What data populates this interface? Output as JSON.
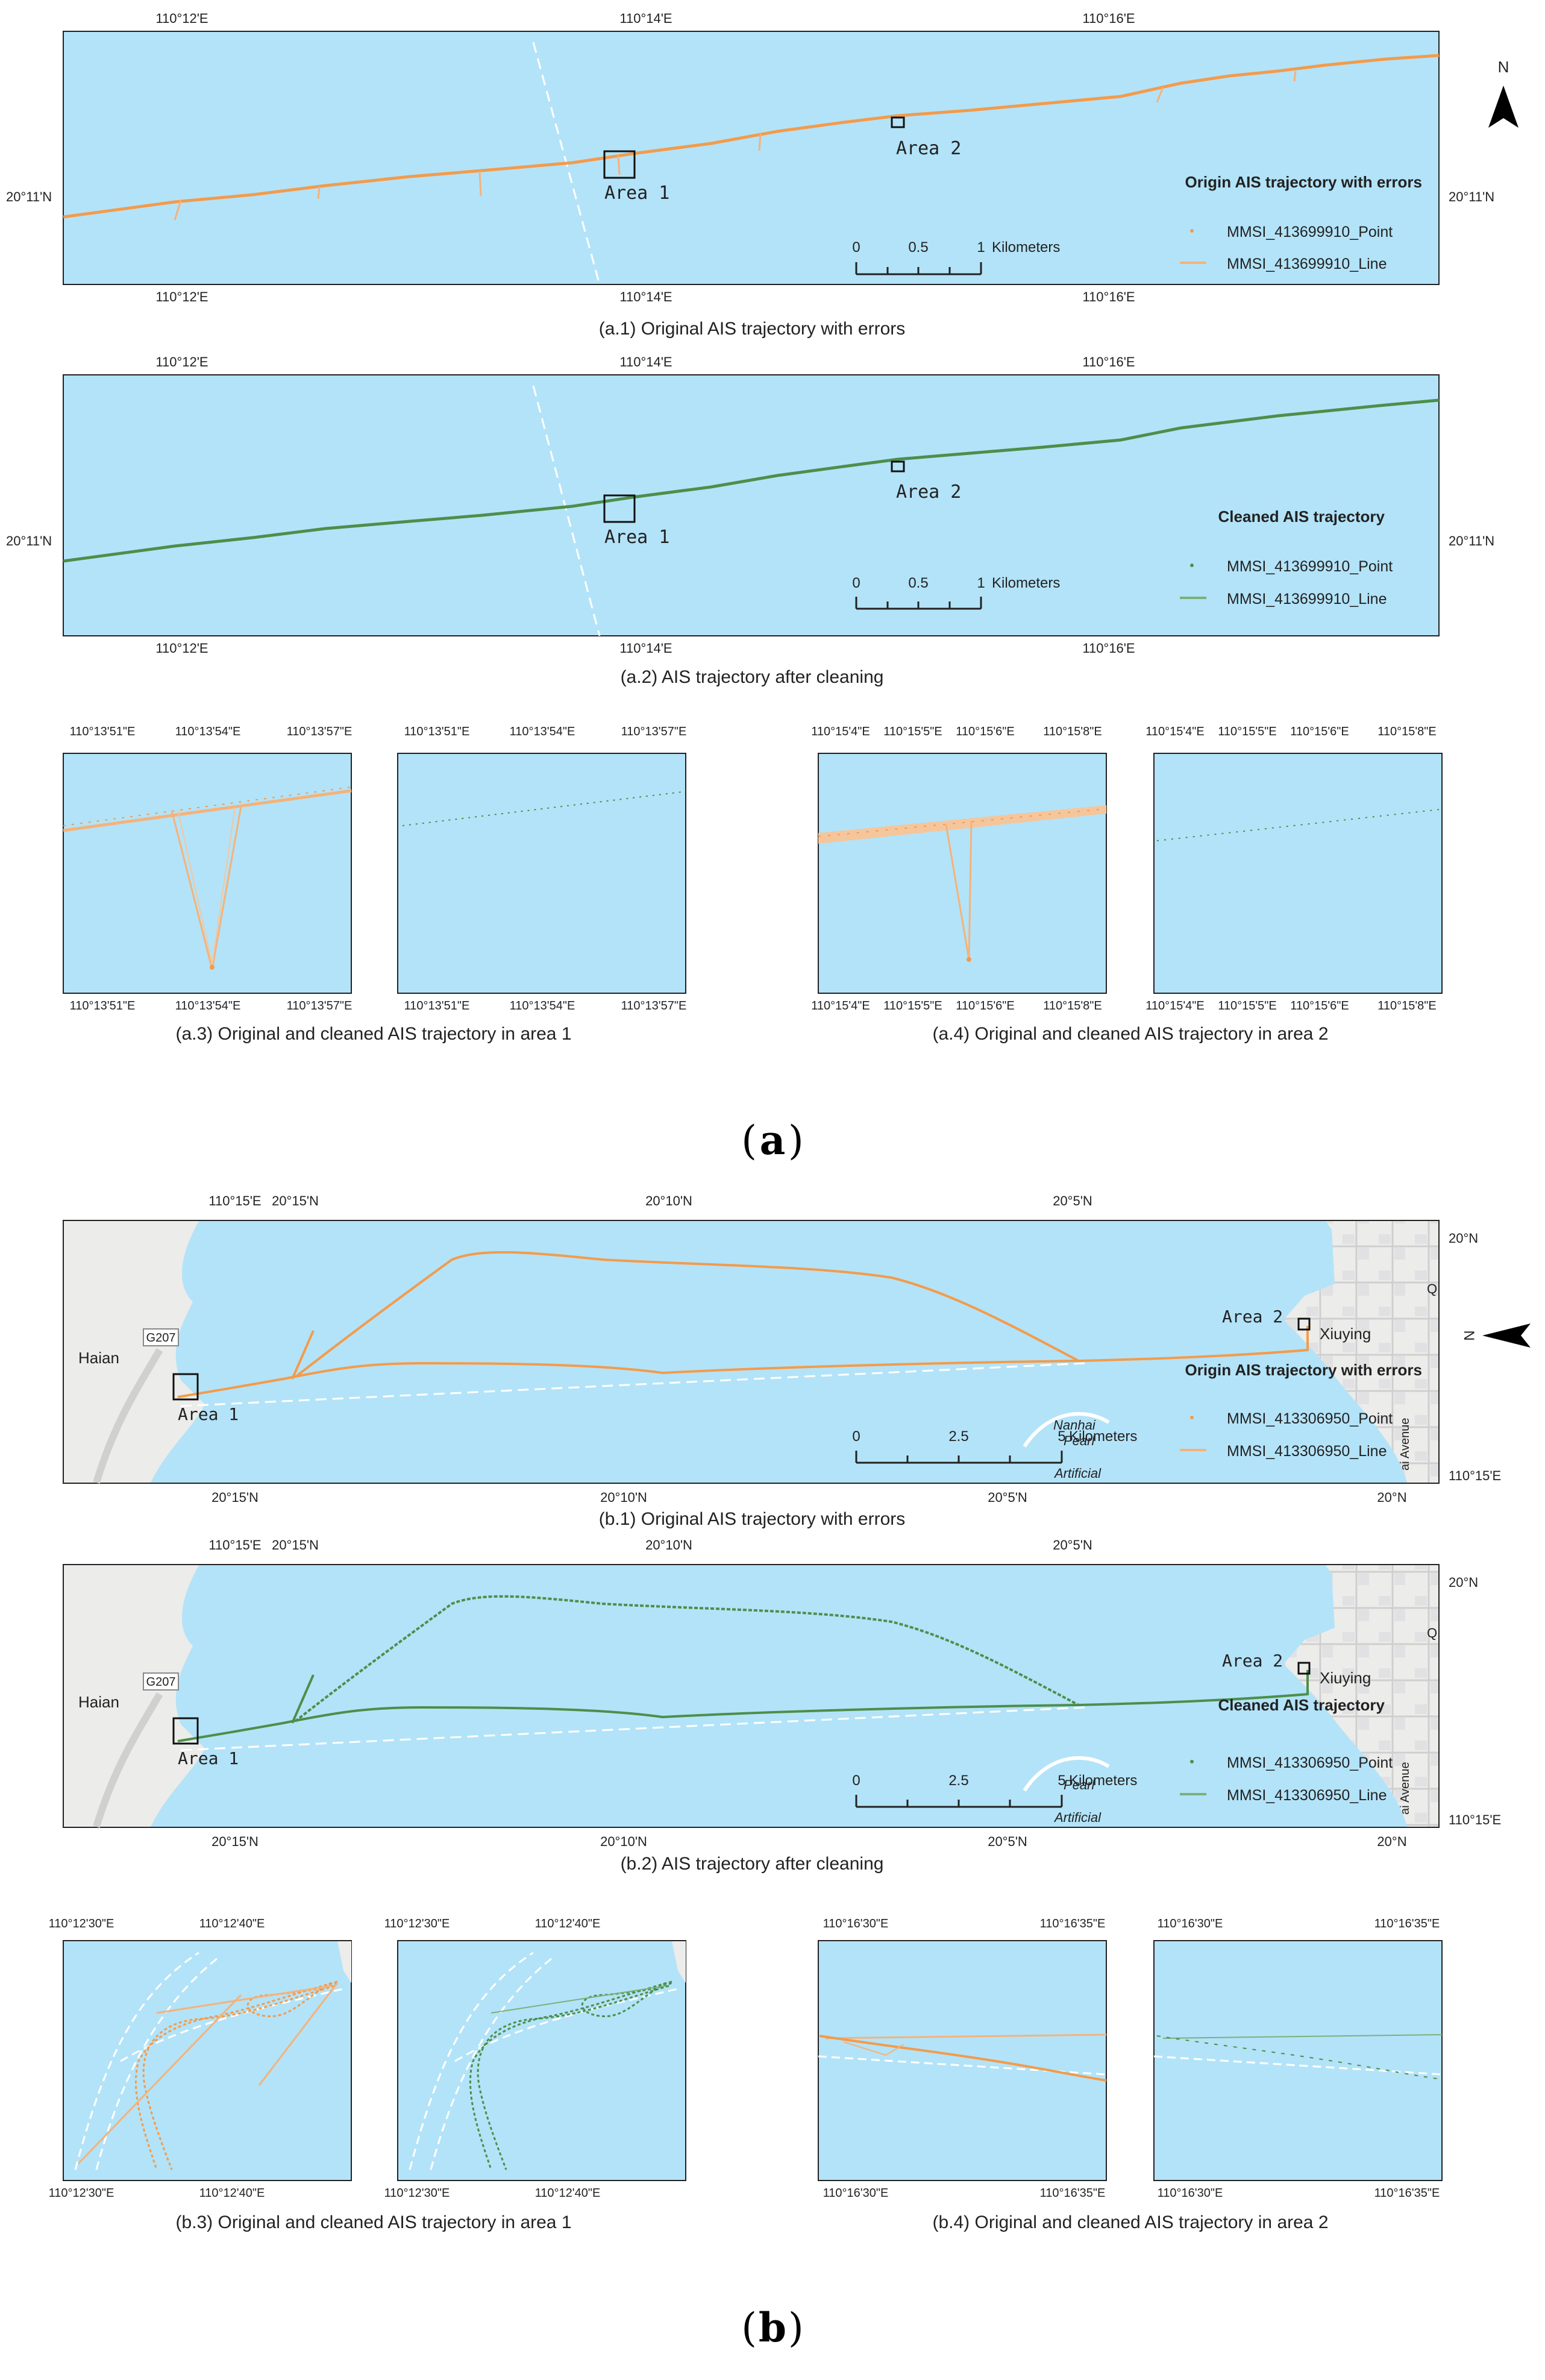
{
  "colors": {
    "water": "#b3e3f8",
    "land": "#ececea",
    "road": "#d8d8d8",
    "origin_trajectory": "#f39b4b",
    "cleaned_trajectory": "#4c8f4a",
    "frame": "#222222"
  },
  "icons": [
    "north-arrow-icon",
    "scale-bar-icon"
  ],
  "a": {
    "label_open": "(",
    "label_letter": "a",
    "label_close": ")",
    "a1": {
      "caption": "(a.1) Original AIS trajectory with errors",
      "lon_ticks": [
        "110°12'E",
        "110°14'E",
        "110°16'E"
      ],
      "lat_ticks": [
        "20°11'N",
        "20°11'N"
      ],
      "area1": "Area 1",
      "area2": "Area 2",
      "legend_title": "Origin AIS trajectory with errors",
      "legend_point": "MMSI_413699910_Point",
      "legend_line": "MMSI_413699910_Line",
      "scale": [
        "0",
        "0.5",
        "1",
        "Kilometers"
      ],
      "north": "N"
    },
    "a2": {
      "caption": "(a.2) AIS trajectory after cleaning",
      "lon_ticks": [
        "110°12'E",
        "110°14'E",
        "110°16'E"
      ],
      "lat_ticks": [
        "20°11'N",
        "20°11'N"
      ],
      "area1": "Area 1",
      "area2": "Area 2",
      "legend_title": "Cleaned AIS trajectory",
      "legend_point": "MMSI_413699910_Point",
      "legend_line": "MMSI_413699910_Line",
      "scale": [
        "0",
        "0.5",
        "1",
        "Kilometers"
      ]
    },
    "a3": {
      "caption": "(a.3) Original and cleaned AIS trajectory in area 1",
      "ticks": [
        "110°13'51\"E",
        "110°13'54\"E",
        "110°13'57\"E"
      ]
    },
    "a4": {
      "caption": "(a.4) Original and cleaned AIS trajectory in area 2",
      "ticks": [
        "110°15'4\"E",
        "110°15'5\"E",
        "110°15'6\"E",
        "110°15'8\"E"
      ]
    }
  },
  "b": {
    "label_open": "(",
    "label_letter": "b",
    "label_close": ")",
    "b1": {
      "caption": "(b.1) Original AIS trajectory with errors",
      "top_ticks": [
        "110°15'E",
        "20°15'N",
        "20°10'N",
        "20°5'N"
      ],
      "bottom_ticks": [
        "20°15'N",
        "20°10'N",
        "20°5'N",
        "20°N"
      ],
      "right_ticks": [
        "20°N",
        "110°15'E"
      ],
      "place_haian": "Haian",
      "road_g207": "G207",
      "place_xiuying": "Xiuying",
      "place_q": "Q",
      "road_avenue": "ai Avenue",
      "place_pearl": "Pearl",
      "place_artificial": "Artificial",
      "place_nanhai": "Nanhai",
      "area1": "Area 1",
      "area2": "Area 2",
      "legend_title": "Origin AIS trajectory with errors",
      "legend_point": "MMSI_413306950_Point",
      "legend_line": "MMSI_413306950_Line",
      "scale": [
        "0",
        "2.5",
        "5",
        "Kilometers"
      ],
      "north": "N"
    },
    "b2": {
      "caption": "(b.2) AIS trajectory after cleaning",
      "top_ticks": [
        "110°15'E",
        "20°15'N",
        "20°10'N",
        "20°5'N"
      ],
      "bottom_ticks": [
        "20°15'N",
        "20°10'N",
        "20°5'N",
        "20°N"
      ],
      "right_ticks": [
        "20°N",
        "110°15'E"
      ],
      "place_haian": "Haian",
      "road_g207": "G207",
      "place_xiuying": "Xiuying",
      "place_q": "Q",
      "road_avenue": "ai Avenue",
      "place_pearl": "Pearl",
      "place_artificial": "Artificial",
      "area1": "Area 1",
      "area2": "Area 2",
      "legend_title": "Cleaned AIS trajectory",
      "legend_point": "MMSI_413306950_Point",
      "legend_line": "MMSI_413306950_Line",
      "scale": [
        "0",
        "2.5",
        "5",
        "Kilometers"
      ]
    },
    "b3": {
      "caption": "(b.3) Original and cleaned AIS trajectory in area 1",
      "ticks": [
        "110°12'30\"E",
        "110°12'40\"E"
      ]
    },
    "b4": {
      "caption": "(b.4) Original and cleaned AIS trajectory in area 2",
      "ticks": [
        "110°16'30\"E",
        "110°16'35\"E"
      ]
    }
  }
}
